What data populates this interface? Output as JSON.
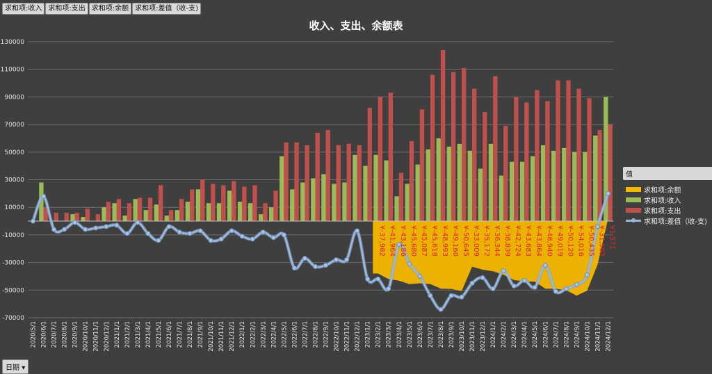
{
  "filter_buttons": [
    "求和项:收入",
    "求和项:支出",
    "求和项:余额",
    "求和项:差值（收-支)"
  ],
  "date_button": "日期",
  "legend": {
    "title": "值",
    "items": [
      {
        "label": "求和项:余额",
        "color": "#f5b800"
      },
      {
        "label": "求和项:收入",
        "color": "#9bbb59"
      },
      {
        "label": "求和项:支出",
        "color": "#c0504d"
      },
      {
        "label": "求和项:差值（收-支)",
        "color": "#9ab7db"
      }
    ]
  },
  "chart_data": {
    "type": "bar",
    "title": "收入、支出、余额表",
    "ylim": [
      -70000,
      130000
    ],
    "yticks": [
      130000,
      110000,
      90000,
      70000,
      50000,
      30000,
      10000,
      -10000,
      -30000,
      -50000,
      -70000
    ],
    "grid": true,
    "legend_position": "right",
    "categories": [
      "2020/5/1",
      "2020/6/1",
      "2020/7/1",
      "2020/8/1",
      "2020/9/1",
      "2020/10/1",
      "2020/11/1",
      "2020/12/1",
      "2021/1/1",
      "2021/2/1",
      "2021/3/1",
      "2021/4/1",
      "2021/5/1",
      "2021/6/1",
      "2021/7/1",
      "2021/8/1",
      "2021/9/1",
      "2021/10/1",
      "2021/11/1",
      "2021/12/1",
      "2022/1/1",
      "2022/2/1",
      "2022/3/1",
      "2022/4/1",
      "2022/5/1",
      "2022/6/1",
      "2022/7/1",
      "2022/8/1",
      "2022/9/1",
      "2022/10/1",
      "2022/11/1",
      "2022/12/1",
      "2023/1/1",
      "2023/2/1",
      "2023/3/1",
      "2023/4/1",
      "2023/5/1",
      "2023/6/1",
      "2023/7/1",
      "2023/8/1",
      "2023/9/1",
      "2023/10/1",
      "2023/11/1",
      "2023/12/1",
      "2024/1/1",
      "2024/2/1",
      "2024/3/1",
      "2024/4/1",
      "2024/5/1",
      "2024/6/1",
      "2024/7/1",
      "2024/8/1",
      "2024/9/1",
      "2024/10/1",
      "2024/11/1",
      "2024/12/1"
    ],
    "tick_labels": [
      "2020/5/1",
      "2020/6/1",
      "2020/7/1",
      "2020/8/1",
      "2020/9/1",
      "2020/10/1",
      "2020/11/1",
      "2020/12/1",
      "2021/1/1",
      "2021/2/1",
      "2021/3/1",
      "2021/4/1",
      "2021/5/1",
      "2021/6/1",
      "2021/7/1",
      "2021/8/1",
      "2021/9/1",
      "2021/10/1",
      "2021/11/1",
      "2021/12/1",
      "2022/1/1",
      "2022/2/1",
      "2022/3/1",
      "2022/4/1",
      "2022/5/1",
      "2022/6/1",
      "2022/7/1",
      "2022/8/1",
      "2022/9/1",
      "2022/10/1",
      "2022/11/1",
      "2022/12/1",
      "2023/1/1",
      "2023/2/1",
      "2023/3/1",
      "2023/4/1",
      "2023/5/1",
      "2023/6/1",
      "2023/7/1",
      "2023/8/1",
      "2023/9/1",
      "2023/10/1",
      "2023/11/1",
      "2023/12/1",
      "2024/1/1",
      "2024/2/1",
      "2024/3/1",
      "2024/4/1",
      "2024/5/1",
      "2024/6/1",
      "2024/7/1",
      "2024/8/1",
      "2024/9/1",
      "2024/10/1",
      "2024/11/1",
      "2024/12/1"
    ],
    "series": [
      {
        "name": "求和项:收入",
        "kind": "bar",
        "values": [
          0,
          28000,
          0,
          0,
          5000,
          3000,
          0,
          10000,
          13000,
          4000,
          16000,
          8000,
          12000,
          4000,
          8000,
          14000,
          23000,
          13000,
          13000,
          22000,
          14000,
          13000,
          5000,
          10000,
          47000,
          23000,
          28000,
          31000,
          34000,
          27000,
          28000,
          48000,
          40000,
          48000,
          44000,
          18000,
          27000,
          41000,
          52000,
          60000,
          54000,
          56000,
          51000,
          38000,
          56000,
          33000,
          43000,
          43000,
          47000,
          55000,
          51000,
          53000,
          50000,
          50000,
          62000,
          90000
        ]
      },
      {
        "name": "求和项:支出",
        "kind": "bar",
        "values": [
          0,
          10000,
          6000,
          6000,
          6000,
          9000,
          5000,
          14000,
          16000,
          13000,
          17000,
          17000,
          26000,
          8000,
          16000,
          23000,
          30000,
          27000,
          26000,
          29000,
          25000,
          26000,
          13000,
          22000,
          57000,
          57000,
          55000,
          64000,
          66000,
          55000,
          56000,
          55000,
          82000,
          90000,
          93000,
          35000,
          58000,
          81000,
          106000,
          124000,
          108000,
          111000,
          96000,
          79000,
          105000,
          69000,
          90000,
          86000,
          95000,
          87000,
          102000,
          102000,
          96000,
          89000,
          66000,
          70000
        ]
      },
      {
        "name": "求和项:余额",
        "kind": "area",
        "values": [
          null,
          null,
          null,
          null,
          null,
          null,
          null,
          null,
          null,
          null,
          null,
          null,
          null,
          null,
          null,
          null,
          null,
          null,
          null,
          null,
          null,
          null,
          null,
          null,
          null,
          null,
          null,
          null,
          null,
          null,
          null,
          null,
          null,
          -37982,
          -41964,
          -43186,
          -45680,
          -45087,
          -45618,
          -48993,
          -49160,
          -50645,
          -33009,
          -35172,
          -36344,
          -38839,
          -42724,
          -43683,
          -43864,
          -48940,
          -49019,
          -50120,
          -54016,
          -50435,
          -31502,
          1571
        ]
      },
      {
        "name": "求和项:差值（收-支)",
        "kind": "line",
        "values": [
          0,
          18000,
          -6000,
          -6000,
          -1000,
          -6000,
          -5000,
          -4000,
          -3000,
          -9000,
          -1000,
          -9000,
          -14000,
          -4000,
          -8000,
          -9000,
          -7000,
          -14000,
          -13000,
          -7000,
          -11000,
          -13000,
          -8000,
          -12000,
          -10000,
          -34000,
          -27000,
          -33000,
          -32000,
          -28000,
          -28000,
          -7000,
          -42000,
          -42000,
          -49000,
          -17000,
          -31000,
          -40000,
          -54000,
          -64000,
          -54000,
          -55000,
          -45000,
          -41000,
          -49000,
          -36000,
          -47000,
          -43000,
          -48000,
          -32000,
          -51000,
          -49000,
          -46000,
          -39000,
          -4000,
          20000
        ]
      }
    ],
    "data_labels": [
      "¥-37,982",
      "¥-41,964",
      "¥-43,186",
      "¥-45,680",
      "¥-45,087",
      "¥-45,618",
      "¥-48,993",
      "¥-49,160",
      "¥-50,645",
      "¥-33,009",
      "¥-35,172",
      "¥-36,344",
      "¥-38,839",
      "¥-42,724",
      "¥-43,683",
      "¥-43,864",
      "¥-48,940",
      "¥-49,019",
      "¥-50,120",
      "¥-54,016",
      "¥-50,435",
      "¥-31,502",
      "¥1,571"
    ]
  }
}
